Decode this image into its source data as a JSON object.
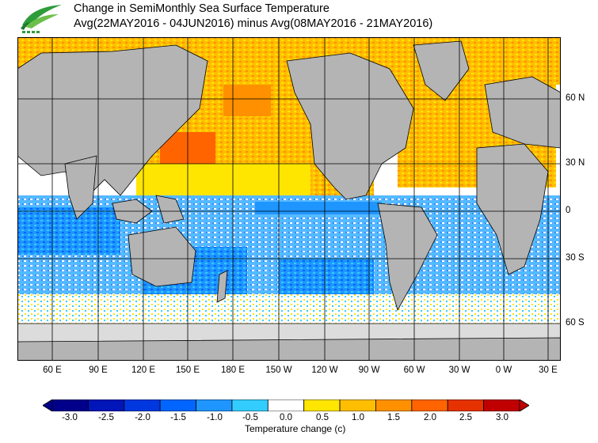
{
  "title_line1": "Change in SemiMonthly Sea Surface Temperature",
  "title_line2": "Avg(22MAY2016 - 04JUN2016) minus Avg(08MAY2016 - 21MAY2016)",
  "x_labels": [
    "60 E",
    "90 E",
    "120 E",
    "150 E",
    "180 E",
    "150 W",
    "120 W",
    "90 W",
    "60 W",
    "30 W",
    "0 W",
    "30 E"
  ],
  "y_labels": [
    "60 N",
    "30 N",
    "0",
    "30 S",
    "60 S"
  ],
  "colorbar": {
    "ticks": [
      "-3.0",
      "-2.5",
      "-2.0",
      "-1.5",
      "-1.0",
      "-0.5",
      "0.0",
      "0.5",
      "1.0",
      "1.5",
      "2.0",
      "2.5",
      "3.0"
    ],
    "unit_label": "Temperature change  (c)",
    "colors": [
      "#00008b",
      "#0016b8",
      "#0038e0",
      "#0066ff",
      "#1f96ff",
      "#33ccff",
      "#ffffff",
      "#ffe600",
      "#ffbe00",
      "#ff9100",
      "#ff6400",
      "#e63200",
      "#c00000"
    ]
  },
  "map": {
    "land_color": "#b4b4b4",
    "missing_color": "#dcdcdc",
    "grid": true
  }
}
